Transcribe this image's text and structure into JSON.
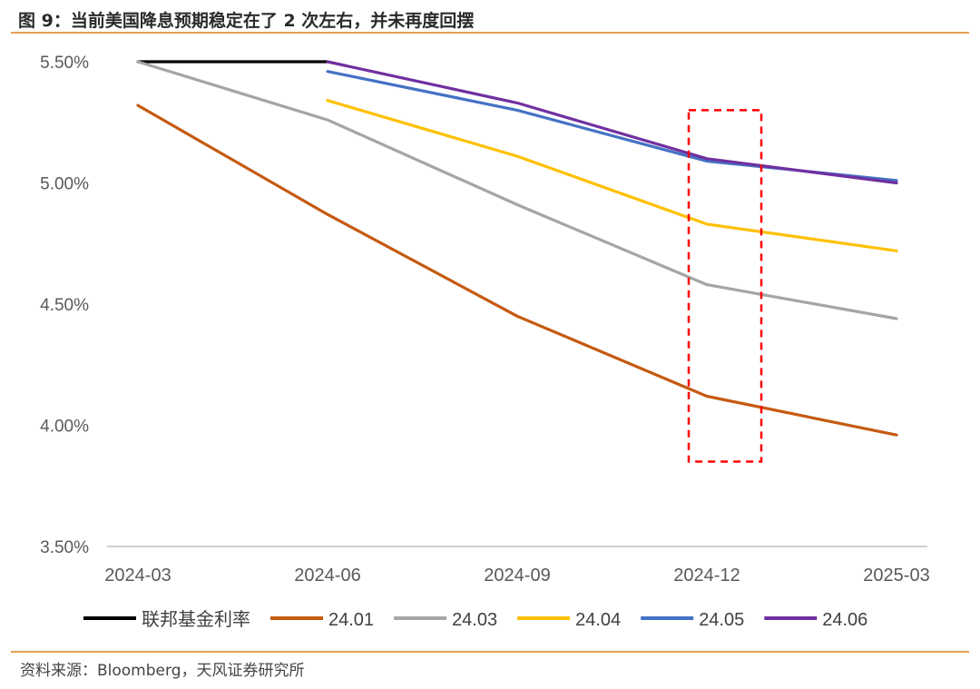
{
  "page": {
    "title": "图 9：当前美国降息预期稳定在了 2 次左右，并未再度回摆",
    "source": "资料来源：Bloomberg，天风证券研究所"
  },
  "chart_data": {
    "type": "line",
    "title": "",
    "xlabel": "",
    "ylabel": "",
    "categories": [
      "2024-03",
      "2024-06",
      "2024-09",
      "2024-12",
      "2025-03"
    ],
    "ylim": [
      3.5,
      5.5
    ],
    "yticks": [
      3.5,
      4.0,
      4.5,
      5.0,
      5.5
    ],
    "ytick_labels": [
      "3.50%",
      "4.00%",
      "4.50%",
      "5.00%",
      "5.50%"
    ],
    "grid": false,
    "legend_position": "bottom",
    "series": [
      {
        "name": "联邦基金利率",
        "color": "#000000",
        "values": [
          5.5,
          5.5,
          null,
          null,
          null
        ]
      },
      {
        "name": "24.01",
        "color": "#c55a11",
        "values": [
          5.32,
          4.87,
          4.45,
          4.12,
          3.96
        ]
      },
      {
        "name": "24.03",
        "color": "#a5a5a5",
        "values": [
          5.5,
          5.26,
          4.91,
          4.58,
          4.44
        ]
      },
      {
        "name": "24.04",
        "color": "#ffc000",
        "values": [
          null,
          5.34,
          5.11,
          4.83,
          4.72
        ]
      },
      {
        "name": "24.05",
        "color": "#4472c4",
        "values": [
          null,
          5.46,
          5.3,
          5.09,
          5.01
        ]
      },
      {
        "name": "24.06",
        "color": "#7030a0",
        "values": [
          null,
          5.5,
          5.33,
          5.1,
          5.0
        ]
      }
    ],
    "annotations": [
      {
        "type": "dashed-box",
        "color": "#ff0000",
        "around_category": "2024-12",
        "y_range": [
          3.85,
          5.3
        ]
      }
    ]
  }
}
